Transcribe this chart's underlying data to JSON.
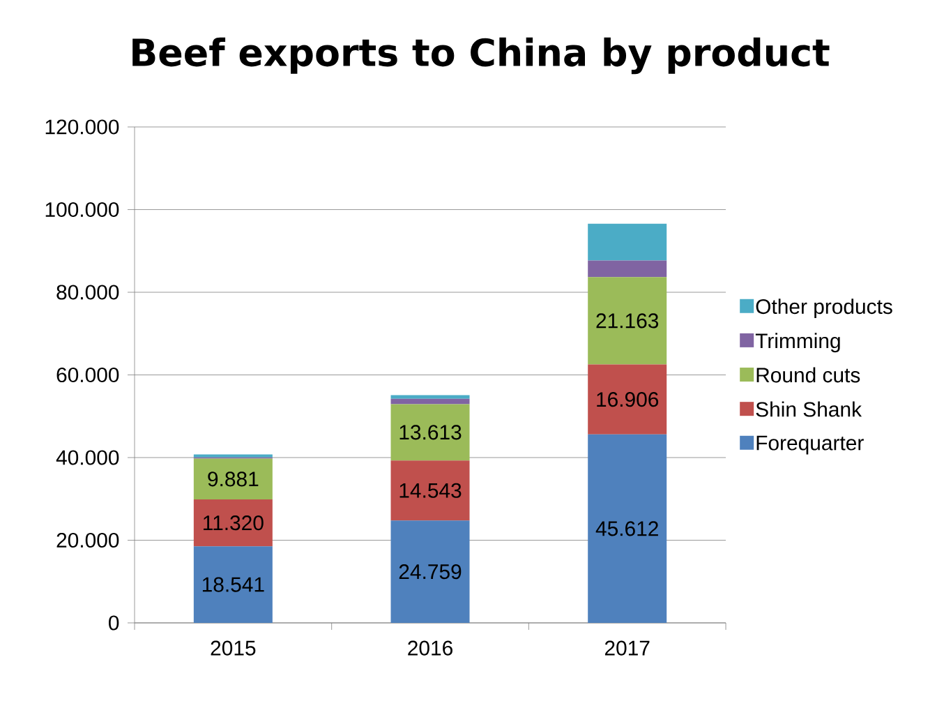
{
  "chart_data": {
    "type": "bar",
    "title": "Beef exports to China by product",
    "stacked": true,
    "categories": [
      "2015",
      "2016",
      "2017"
    ],
    "series": [
      {
        "name": "Forequarter",
        "color": "#4f81bd",
        "values": [
          18541,
          24759,
          45612
        ],
        "value_labels": [
          "18.541",
          "24.759",
          "45.612"
        ]
      },
      {
        "name": "Shin Shank",
        "color": "#c0504d",
        "values": [
          11320,
          14543,
          16906
        ],
        "value_labels": [
          "11.320",
          "14.543",
          "16.906"
        ]
      },
      {
        "name": "Round cuts",
        "color": "#9bbb59",
        "values": [
          9881,
          13613,
          21163
        ],
        "value_labels": [
          "9.881",
          "13.613",
          "21.163"
        ]
      },
      {
        "name": "Trimming",
        "color": "#8064a2",
        "values": [
          300,
          1300,
          4000
        ],
        "value_labels": [
          null,
          null,
          null
        ]
      },
      {
        "name": "Other products",
        "color": "#4bacc6",
        "values": [
          700,
          900,
          8900
        ],
        "value_labels": [
          null,
          null,
          null
        ]
      }
    ],
    "ylim": [
      0,
      120000
    ],
    "yticks": [
      0,
      {
        "value": 20000,
        "label": "20.000"
      },
      {
        "value": 40000,
        "label": "40.000"
      },
      {
        "value": 60000,
        "label": "60.000"
      },
      {
        "value": 80000,
        "label": "80.000"
      },
      {
        "value": 100000,
        "label": "100.000"
      },
      {
        "value": 120000,
        "label": "120.000"
      }
    ],
    "grid": "y",
    "legend": "right"
  }
}
